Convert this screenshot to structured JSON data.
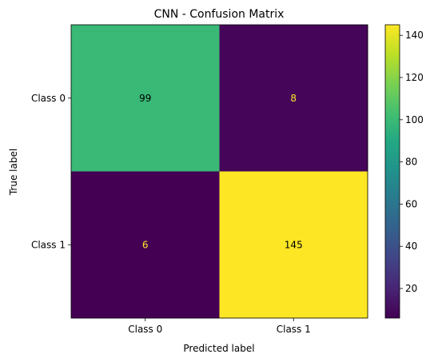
{
  "chart_data": {
    "type": "heatmap",
    "title": "CNN - Confusion Matrix",
    "xlabel": "Predicted label",
    "ylabel": "True label",
    "x_categories": [
      "Class 0",
      "Class 1"
    ],
    "y_categories": [
      "Class 0",
      "Class 1"
    ],
    "values": [
      [
        99,
        8
      ],
      [
        6,
        145
      ]
    ],
    "colormap": "viridis",
    "color_range": [
      6,
      145
    ],
    "colorbar_ticks": [
      20,
      40,
      60,
      80,
      100,
      120,
      140
    ],
    "annotation_colors": {
      "on_dark": "#fde725",
      "on_light": "#000000"
    },
    "legend": "colorbar-right",
    "grid": false
  }
}
